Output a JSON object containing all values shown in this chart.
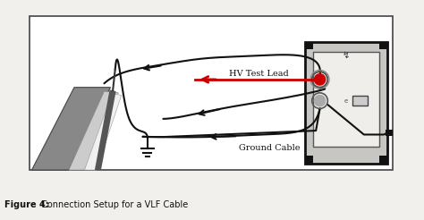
{
  "bg_color": "#ffffff",
  "fig_bg": "#f2f0ed",
  "border_color": "#444444",
  "caption_bold": "Figure 4:",
  "caption_rest": " Connection Setup for a VLF Cable",
  "hv_label": "HV Test Lead",
  "ground_label": "Ground Cable",
  "line_color": "#111111",
  "hv_line_color": "#cc0000",
  "cable_gray": "#999999",
  "cable_light": "#dddddd",
  "cable_dark": "#555555",
  "box_bg": "#c8c6c2",
  "panel_bg": "#f0eeeb",
  "corner_black": "#111111"
}
